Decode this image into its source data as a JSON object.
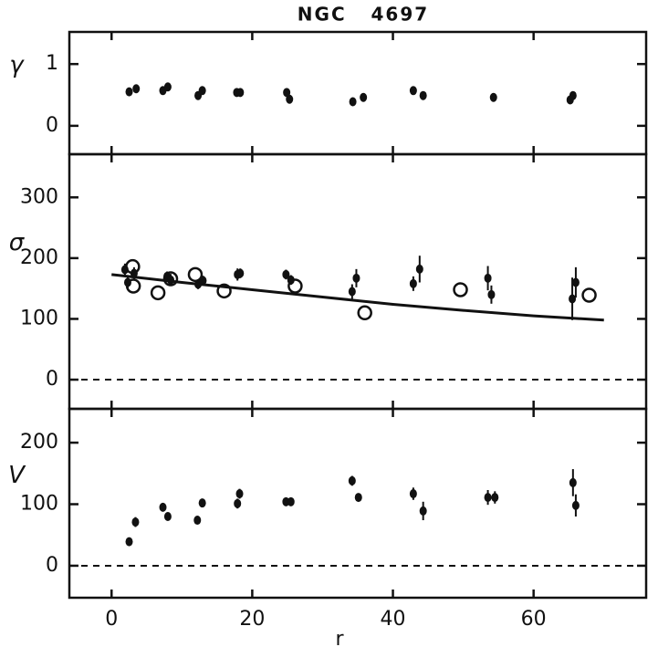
{
  "chart_data": [
    {
      "type": "scatter",
      "title": "NGC   4697",
      "ylabel": "γ",
      "xlim": [
        -6,
        76
      ],
      "ylim": [
        -0.46,
        1.52
      ],
      "yticks": [
        0,
        1
      ],
      "series": [
        {
          "marker": "filled",
          "color": "#111111",
          "x": [
            2.5,
            3.5,
            7.3,
            8,
            12.3,
            12.9,
            17.8,
            18.3,
            24.9,
            25.3,
            34.3,
            35.8,
            42.9,
            44.3,
            54.3,
            65.2,
            65.6
          ],
          "values": [
            0.55,
            0.6,
            0.57,
            0.63,
            0.49,
            0.57,
            0.54,
            0.54,
            0.54,
            0.43,
            0.39,
            0.46,
            0.57,
            0.49,
            0.46,
            0.42,
            0.49
          ]
        }
      ]
    },
    {
      "type": "scatter",
      "ylabel": "σ",
      "xlim": [
        -6,
        76
      ],
      "ylim": [
        -48,
        371
      ],
      "yticks": [
        0,
        100,
        200,
        300
      ],
      "zero_line": true,
      "series": [
        {
          "marker": "filled",
          "color": "#111111",
          "x": [
            1.9,
            2.3,
            3.2,
            7.9,
            8.4,
            12.3,
            13,
            17.9,
            18.3,
            24.8,
            25.5,
            34.2,
            34.8,
            42.9,
            43.8,
            53.5,
            54,
            65.5,
            66
          ],
          "values": [
            181,
            160,
            175,
            170,
            164,
            157,
            163,
            173,
            175,
            173,
            164,
            145,
            167,
            158,
            182,
            167,
            140,
            133,
            160
          ],
          "errors": [
            10,
            10,
            10,
            8,
            10,
            8,
            8,
            10,
            8,
            8,
            8,
            12,
            15,
            12,
            22,
            20,
            15,
            35,
            25
          ]
        },
        {
          "marker": "open",
          "color": "#111111",
          "x": [
            3,
            3.1,
            6.6,
            8.4,
            11.9,
            16,
            26.1,
            36,
            49.6,
            67.9
          ],
          "values": [
            186,
            154,
            143,
            166,
            173,
            146,
            154,
            110,
            148,
            139
          ]
        },
        {
          "marker": "line",
          "color": "#111111",
          "x": [
            0,
            10,
            20,
            30,
            40,
            50,
            60,
            70
          ],
          "values": [
            173,
            160,
            148,
            136,
            124,
            114,
            105,
            98
          ]
        }
      ]
    },
    {
      "type": "scatter",
      "ylabel": "V",
      "xlabel": "r",
      "xlim": [
        -6,
        76
      ],
      "ylim": [
        -52,
        255
      ],
      "yticks": [
        0,
        100,
        200
      ],
      "xticks": [
        0,
        20,
        40,
        60
      ],
      "zero_line": true,
      "series": [
        {
          "marker": "filled",
          "color": "#111111",
          "x": [
            2.5,
            3.4,
            7.3,
            8,
            12.2,
            12.9,
            17.9,
            18.2,
            24.8,
            25.5,
            34.2,
            35.1,
            42.9,
            44.3,
            53.5,
            54.5,
            65.6,
            66
          ],
          "values": [
            39,
            71,
            95,
            80,
            74,
            102,
            101,
            117,
            104,
            104,
            138,
            111,
            117,
            89,
            111,
            111,
            135,
            98
          ],
          "errors": [
            6,
            8,
            6,
            6,
            6,
            6,
            8,
            8,
            6,
            6,
            8,
            6,
            10,
            15,
            12,
            10,
            22,
            18
          ]
        }
      ]
    }
  ]
}
